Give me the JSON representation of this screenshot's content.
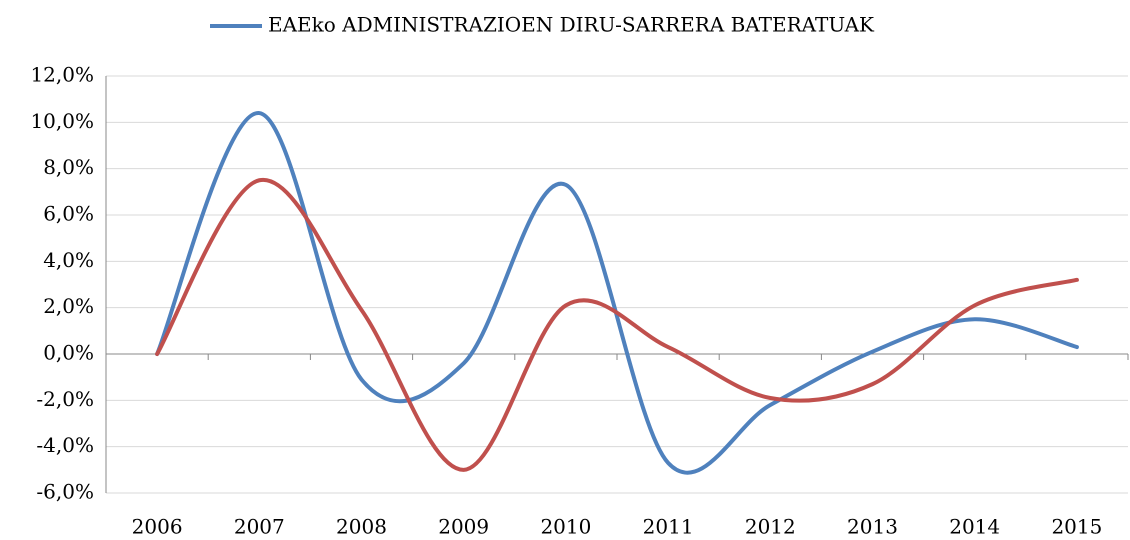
{
  "chart_data": {
    "type": "line",
    "categories": [
      "2006",
      "2007",
      "2008",
      "2009",
      "2010",
      "2011",
      "2012",
      "2013",
      "2014",
      "2015"
    ],
    "series": [
      {
        "name": "EAEko ADMINISTRAZIOEN DIRU-SARRERA BATERATUAK",
        "color": "#4f81bd",
        "values": [
          0,
          10.4,
          -1.1,
          -0.4,
          7.3,
          -4.7,
          -2.2,
          0.1,
          1.5,
          0.3
        ]
      },
      {
        "color": "#c0504d",
        "values": [
          0,
          7.5,
          1.9,
          -5.0,
          2.1,
          0.3,
          -1.9,
          -1.3,
          2.1,
          3.2
        ]
      }
    ],
    "ylim": [
      -6,
      12
    ],
    "yticks": [
      {
        "value": -6,
        "label": "-6,0%"
      },
      {
        "value": -4,
        "label": "-4,0%"
      },
      {
        "value": -2,
        "label": "-2,0%"
      },
      {
        "value": 0,
        "label": "0,0%"
      },
      {
        "value": 2,
        "label": "2,0%"
      },
      {
        "value": 4,
        "label": "4,0%"
      },
      {
        "value": 6,
        "label": "6,0%"
      },
      {
        "value": 8,
        "label": "8,0%"
      },
      {
        "value": 10,
        "label": "10,0%"
      },
      {
        "value": 12,
        "label": "12,0%"
      }
    ],
    "grid": true,
    "legend": "top",
    "smooth": true
  }
}
